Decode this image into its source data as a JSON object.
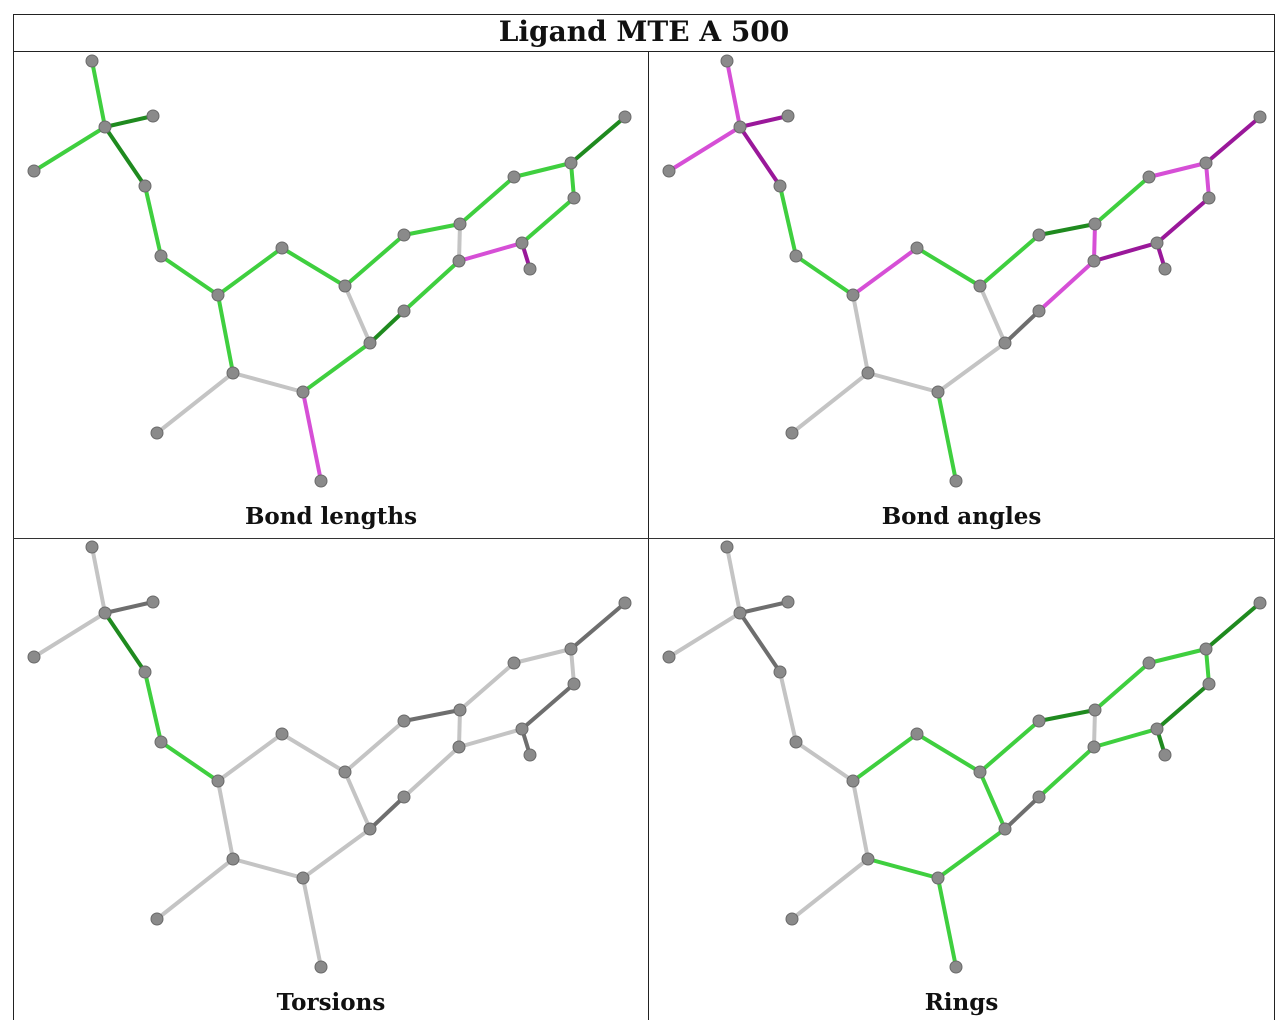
{
  "title": "Ligand MTE A 500",
  "colors": {
    "gray": "#c4c4c4",
    "darkgray": "#6e6e6e",
    "green": "#3fcf3f",
    "darkgreen": "#1f8a1f",
    "magenta": "#d64fd6",
    "darkmagenta": "#9a189a",
    "atom": "#8a8a8a"
  },
  "panels": [
    {
      "caption": "Bond lengths",
      "bond_colors": [
        "green",
        "green",
        "darkgreen",
        "darkgreen",
        "green",
        "green",
        "green",
        "gray",
        "green",
        "gray",
        "green",
        "green",
        "green",
        "green",
        "green",
        "green",
        "darkgreen",
        "green",
        "green",
        "gray",
        "magenta",
        "green",
        "darkmagenta",
        "darkgreen",
        "green",
        "magenta",
        "gray",
        "gray",
        "gray"
      ]
    },
    {
      "caption": "Bond angles",
      "bond_colors": [
        "magenta",
        "magenta",
        "darkmagenta",
        "darkmagenta",
        "green",
        "green",
        "gray",
        "gray",
        "gray",
        "gray",
        "green",
        "magenta",
        "green",
        "darkgreen",
        "green",
        "magenta",
        "darkmagenta",
        "magenta",
        "darkmagenta",
        "magenta",
        "darkmagenta",
        "magenta",
        "darkmagenta",
        "darkgray",
        "gray",
        "green",
        "gray",
        "gray",
        "gray"
      ]
    },
    {
      "caption": "Torsions",
      "bond_colors": [
        "gray",
        "gray",
        "darkgray",
        "darkgreen",
        "green",
        "green",
        "gray",
        "gray",
        "gray",
        "gray",
        "gray",
        "gray",
        "gray",
        "darkgray",
        "gray",
        "gray",
        "darkgray",
        "gray",
        "darkgray",
        "gray",
        "gray",
        "gray",
        "darkgray",
        "darkgray",
        "gray",
        "gray",
        "gray",
        "gray",
        "gray"
      ]
    },
    {
      "caption": "Rings",
      "bond_colors": [
        "gray",
        "gray",
        "darkgray",
        "darkgray",
        "gray",
        "gray",
        "gray",
        "green",
        "green",
        "green",
        "green",
        "green",
        "green",
        "darkgreen",
        "green",
        "green",
        "darkgreen",
        "green",
        "darkgreen",
        "gray",
        "green",
        "green",
        "darkgreen",
        "darkgray",
        "green",
        "green",
        "gray",
        "gray",
        "gray"
      ]
    }
  ]
}
